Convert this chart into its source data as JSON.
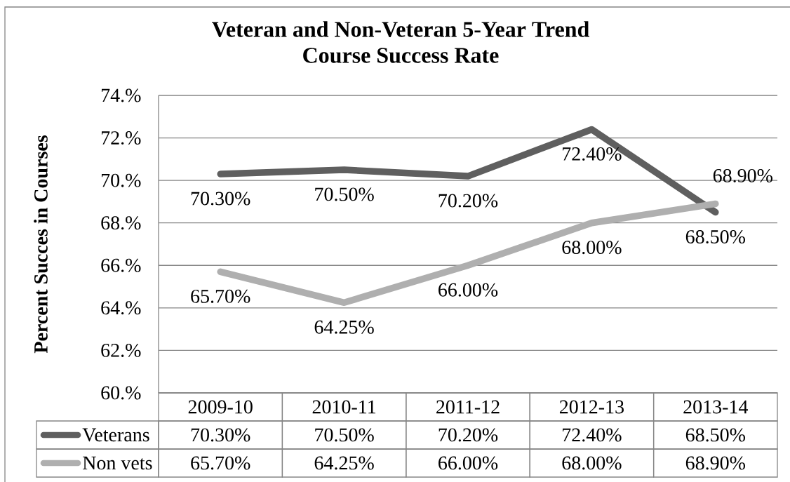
{
  "chart_data": {
    "type": "line",
    "title": "Veteran and Non-Veteran 5-Year Trend Course Success Rate",
    "ylabel": "Percent Succes in Courses",
    "categories": [
      "2009-10",
      "2010-11",
      "2011-12",
      "2012-13",
      "2013-14"
    ],
    "series": [
      {
        "name": "Veterans",
        "color": "#5f5f5f",
        "values": [
          70.3,
          70.5,
          70.2,
          72.4,
          68.5
        ],
        "value_labels": [
          "70.30%",
          "70.50%",
          "70.20%",
          "72.40%",
          "68.50%"
        ]
      },
      {
        "name": "Non vets",
        "color": "#afafaf",
        "values": [
          65.7,
          64.25,
          66.0,
          68.0,
          68.9
        ],
        "value_labels": [
          "65.70%",
          "64.25%",
          "66.00%",
          "68.00%",
          "68.90%"
        ]
      }
    ],
    "ylim": [
      60,
      74
    ],
    "yticks": [
      {
        "value": 60,
        "label": "60.%"
      },
      {
        "value": 62,
        "label": "62.%"
      },
      {
        "value": 64,
        "label": "64.%"
      },
      {
        "value": 66,
        "label": "66.%"
      },
      {
        "value": 68,
        "label": "68.%"
      },
      {
        "value": 70,
        "label": "70.%"
      },
      {
        "value": 72,
        "label": "72.%"
      },
      {
        "value": 74,
        "label": "74.%"
      }
    ],
    "grid": "y",
    "legend": "bottom",
    "marker": "none",
    "line_style": "solid"
  }
}
